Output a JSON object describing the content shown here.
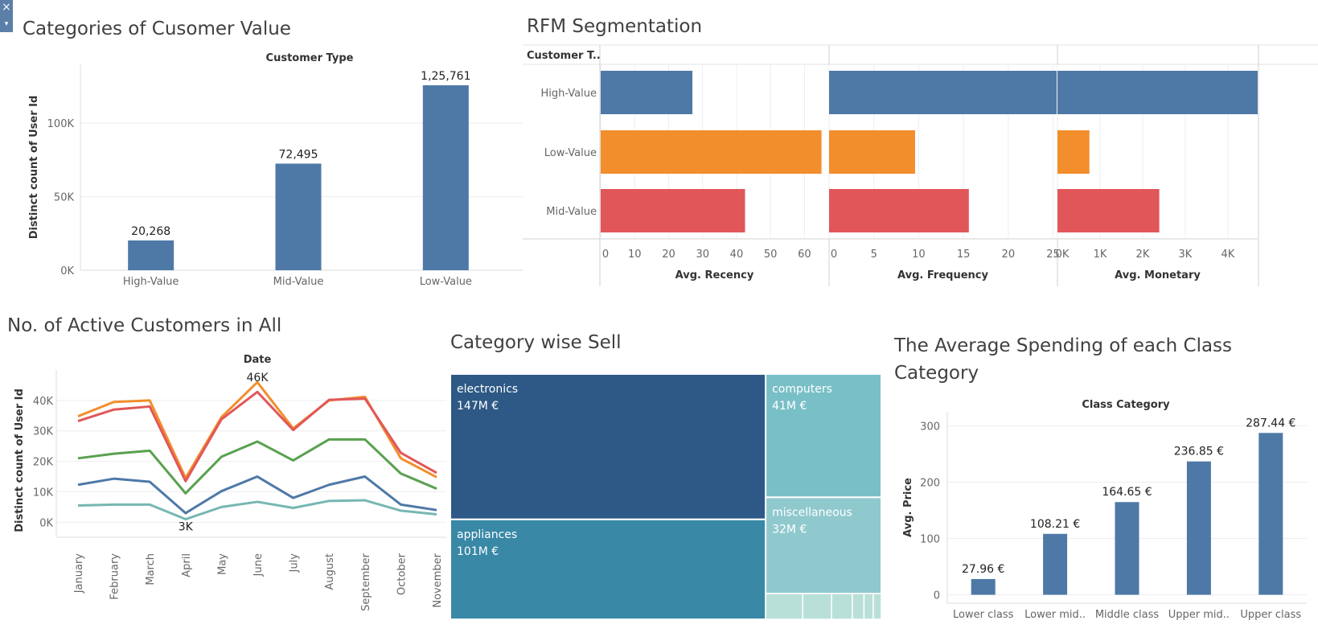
{
  "controls": {
    "close_icon": "×",
    "menu_icon": "▾"
  },
  "colors": {
    "blue": "#4e79a7",
    "orange": "#f28e2b",
    "red": "#e15759",
    "green": "#59a14f",
    "teal": "#76b7b2",
    "grid": "#eeeeee"
  },
  "chart_data": [
    {
      "id": "customer_value",
      "type": "bar",
      "title": "Categories of Cusomer Value",
      "header": "Customer Type",
      "xlabel": "",
      "ylabel": "Distinct count of User Id",
      "categories": [
        "High-Value",
        "Mid-Value",
        "Low-Value"
      ],
      "values": [
        20268,
        72495,
        125761
      ],
      "value_labels": [
        "20,268",
        "72,495",
        "1,25,761"
      ],
      "yticks": [
        0,
        50000,
        100000
      ],
      "ytick_labels": [
        "0K",
        "50K",
        "100K"
      ],
      "ylim": [
        0,
        140000
      ],
      "color": "#4e79a7",
      "grid": true
    },
    {
      "id": "rfm",
      "type": "bar",
      "orientation": "horizontal",
      "title": "RFM Segmentation",
      "header": "Customer T..",
      "categories": [
        "High-Value",
        "Low-Value",
        "Mid-Value"
      ],
      "colors": [
        "#4e79a7",
        "#f28e2b",
        "#e15759"
      ],
      "panels": [
        {
          "label": "Avg. Recency",
          "values": [
            27,
            65,
            42.5
          ],
          "xlim": [
            0,
            67
          ],
          "ticks": [
            0,
            10,
            20,
            30,
            40,
            50,
            60
          ],
          "tick_labels": [
            "0",
            "10",
            "20",
            "30",
            "40",
            "50",
            "60"
          ]
        },
        {
          "label": "Avg. Frequency",
          "values": [
            25.4,
            9.6,
            15.6
          ],
          "xlim": [
            0,
            25.4
          ],
          "ticks": [
            0,
            5,
            10,
            15,
            20,
            25
          ],
          "tick_labels": [
            "0",
            "5",
            "10",
            "15",
            "20",
            "25"
          ]
        },
        {
          "label": "Avg. Monetary",
          "values": [
            4700,
            750,
            2390
          ],
          "xlim": [
            0,
            4700
          ],
          "ticks": [
            0,
            1000,
            2000,
            3000,
            4000
          ],
          "tick_labels": [
            "0K",
            "1K",
            "2K",
            "3K",
            "4K"
          ]
        }
      ],
      "grid": true
    },
    {
      "id": "active_customers",
      "type": "line",
      "title": "No. of Active Customers in  All",
      "header": "Date",
      "ylabel": "Distinct count of User Id",
      "categories": [
        "January",
        "February",
        "March",
        "April",
        "May",
        "June",
        "July",
        "August",
        "September",
        "October",
        "November"
      ],
      "series": [
        {
          "color": "#f28e2b",
          "values": [
            34800,
            39500,
            40000,
            14500,
            34500,
            46000,
            30800,
            40000,
            41200,
            21000,
            14800
          ]
        },
        {
          "color": "#e15759",
          "values": [
            33200,
            37000,
            38000,
            13500,
            33800,
            42800,
            30300,
            40200,
            40600,
            22800,
            16200
          ]
        },
        {
          "color": "#59a14f",
          "values": [
            21000,
            22500,
            23500,
            9500,
            21500,
            26500,
            20300,
            27200,
            27200,
            16000,
            11000
          ]
        },
        {
          "color": "#4e79a7",
          "values": [
            12300,
            14300,
            13300,
            3000,
            10200,
            15000,
            8000,
            12300,
            15000,
            5800,
            4000
          ]
        },
        {
          "color": "#76b7b2",
          "values": [
            5500,
            5800,
            5800,
            1000,
            5000,
            6700,
            4700,
            7000,
            7200,
            3800,
            2600
          ]
        }
      ],
      "annotations": [
        {
          "label": "46K",
          "category": "June",
          "value": 46000
        },
        {
          "label": "3K",
          "category": "April",
          "value": 1000
        }
      ],
      "yticks": [
        0,
        10000,
        20000,
        30000,
        40000
      ],
      "ytick_labels": [
        "0K",
        "10K",
        "20K",
        "30K",
        "40K"
      ],
      "ylim": [
        -1500,
        50000
      ],
      "grid": true
    },
    {
      "id": "category_sell",
      "type": "treemap",
      "title": "Category wise Sell",
      "items": [
        {
          "name": "electronics",
          "value_label": "147M €",
          "value": 147,
          "color": "#2e5986"
        },
        {
          "name": "appliances",
          "value_label": "101M €",
          "value": 101,
          "color": "#3888a6"
        },
        {
          "name": "computers",
          "value_label": "41M €",
          "value": 41,
          "color": "#79bfc7"
        },
        {
          "name": "miscellaneous",
          "value_label": "32M €",
          "value": 32,
          "color": "#8fc9ce"
        }
      ]
    },
    {
      "id": "class_spending",
      "type": "bar",
      "title_lines": [
        "The Average Spending of each Class",
        "Category"
      ],
      "header": "Class Category",
      "ylabel": "Avg. Price",
      "categories": [
        "Lower class",
        "Lower mid..",
        "Middle class",
        "Upper mid..",
        "Upper class"
      ],
      "values": [
        27.96,
        108.21,
        164.65,
        236.85,
        287.44
      ],
      "value_labels": [
        "27.96 €",
        "108.21 €",
        "164.65 €",
        "236.85 €",
        "287.44 €"
      ],
      "yticks": [
        0,
        100,
        200,
        300
      ],
      "ytick_labels": [
        "0",
        "100",
        "200",
        "300"
      ],
      "ylim": [
        -15,
        325
      ],
      "color": "#4e79a7",
      "grid": true
    }
  ]
}
